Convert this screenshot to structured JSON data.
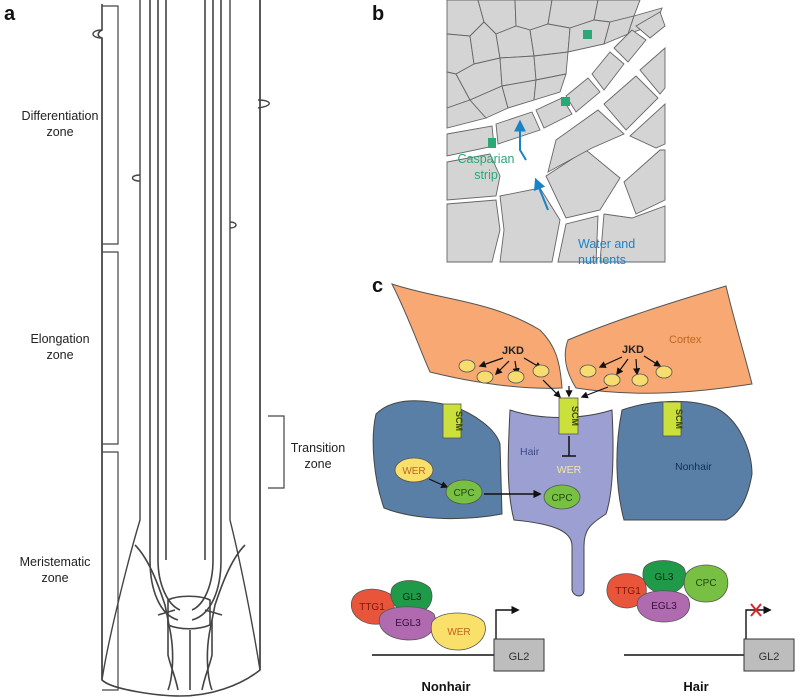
{
  "panels": {
    "a": "a",
    "b": "b",
    "c": "c"
  },
  "zones": {
    "differentiation": [
      "Differentiation",
      "zone"
    ],
    "elongation": [
      "Elongation",
      "zone"
    ],
    "transition": [
      "Transition",
      "zone"
    ],
    "meristematic": [
      "Meristematic",
      "zone"
    ]
  },
  "panel_b": {
    "casparian": [
      "Casparian",
      "strip"
    ],
    "water": [
      "Water and",
      "nutrients"
    ]
  },
  "panel_c": {
    "cortex": "Cortex",
    "jkd_left": "JKD",
    "jkd_right": "JKD",
    "scm": "SCM",
    "hair": "Hair",
    "nonhair": "Nonhair",
    "wer": "WER",
    "cpc": "CPC",
    "wer_center": "WER",
    "cpc_center": "CPC"
  },
  "complex_nonhair": {
    "ttg1": "TTG1",
    "gl3": "GL3",
    "egl3": "EGL3",
    "wer": "WER",
    "gl2": "GL2",
    "title": "Nonhair"
  },
  "complex_hair": {
    "ttg1": "TTG1",
    "gl3": "GL3",
    "egl3": "EGL3",
    "cpc": "CPC",
    "gl2": "GL2",
    "title": "Hair"
  },
  "colors": {
    "cortex": "#f7a873",
    "cortex_text": "#c0651f",
    "cell_blue": "#5a7fa6",
    "hair_cell": "#9b9fd1",
    "scm": "#cbe03a",
    "jkd_dot": "#f7dc6f",
    "cpc": "#78c043",
    "wer": "#f9e06a",
    "ttg1": "#e8553a",
    "gl3": "#1e9a48",
    "egl3": "#b06ab0",
    "gl2_box": "#bdbdbd",
    "casparian": "#2aa876",
    "water": "#1a83c6",
    "tissue": "#d4d4d4"
  }
}
